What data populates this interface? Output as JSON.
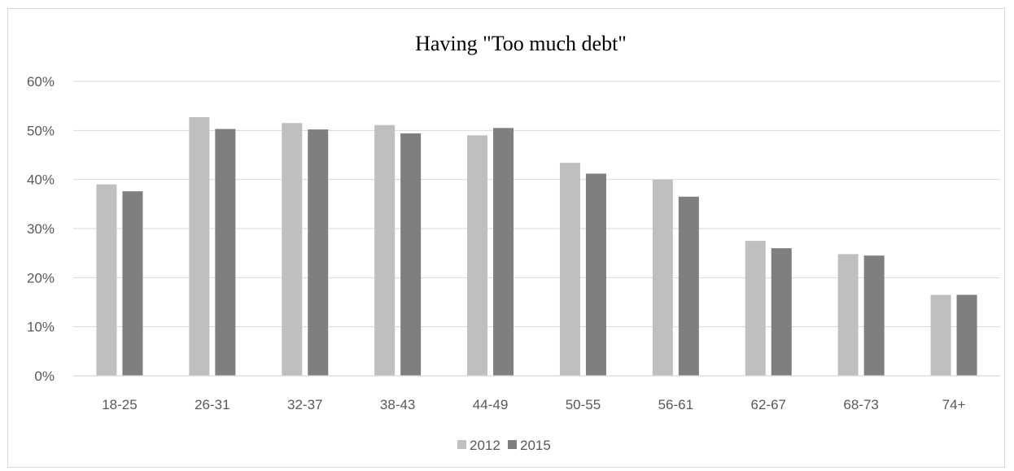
{
  "chart_data": {
    "type": "bar",
    "title": "Having \"Too much debt\"",
    "xlabel": "",
    "ylabel": "",
    "categories": [
      "18-25",
      "26-31",
      "32-37",
      "38-43",
      "44-49",
      "50-55",
      "56-61",
      "62-67",
      "68-73",
      "74+"
    ],
    "series": [
      {
        "name": "2012",
        "color": "#bfbfbf",
        "values": [
          0.39,
          0.527,
          0.515,
          0.511,
          0.49,
          0.434,
          0.4,
          0.275,
          0.248,
          0.165
        ]
      },
      {
        "name": "2015",
        "color": "#7f7f7f",
        "values": [
          0.376,
          0.503,
          0.502,
          0.494,
          0.505,
          0.412,
          0.365,
          0.26,
          0.245,
          0.165
        ]
      }
    ],
    "ylim": [
      0,
      0.6
    ],
    "yticks": [
      {
        "value": 0,
        "label": "0%"
      },
      {
        "value": 0.1,
        "label": "10%"
      },
      {
        "value": 0.2,
        "label": "20%"
      },
      {
        "value": 0.3,
        "label": "30%"
      },
      {
        "value": 0.4,
        "label": "40%"
      },
      {
        "value": 0.5,
        "label": "50%"
      },
      {
        "value": 0.6,
        "label": "60%"
      }
    ],
    "grid": true,
    "legend_position": "bottom"
  }
}
